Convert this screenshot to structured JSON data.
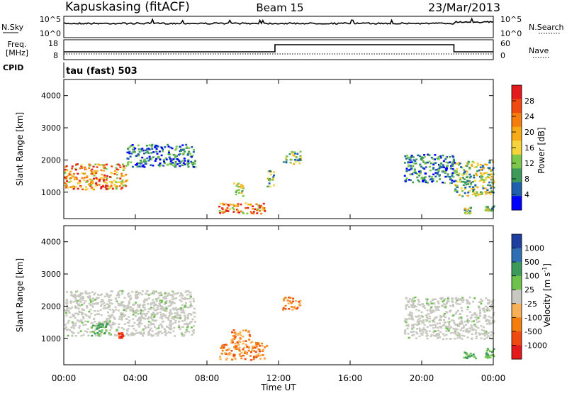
{
  "header": {
    "station": "Kapuskasing (fitACF)",
    "beam": "Beam 15",
    "date": "23/Mar/2013"
  },
  "noise_panel": {
    "left_label": "N.Sky",
    "right_label": "N.Search",
    "left_ticks": [
      "10^5",
      "10^0"
    ],
    "right_ticks": [
      "10^5",
      "10^0"
    ]
  },
  "freq_panel": {
    "left_label_line1": "Freq.",
    "left_label_line2": "[MHz]",
    "right_label": "Nave",
    "left_ticks": [
      "18",
      "8"
    ],
    "right_ticks": [
      "60",
      "0"
    ]
  },
  "cpid": {
    "label": "CPID",
    "mode": "tau (fast) 503"
  },
  "chart_data": [
    {
      "type": "heatmap",
      "name": "power",
      "xlabel": "Time UT",
      "ylabel": "Slant Range [km]",
      "x_ticks": [
        "00:00",
        "04:00",
        "08:00",
        "12:00",
        "16:00",
        "20:00",
        "00:00"
      ],
      "xlim_hours": [
        0,
        24
      ],
      "ylim": [
        180,
        4500
      ],
      "y_ticks": [
        1000,
        2000,
        3000,
        4000
      ],
      "colorbar": {
        "label": "Power [dB]",
        "ticks": [
          "28",
          "24",
          "20",
          "16",
          "12",
          "8",
          "4"
        ],
        "colors": [
          "#e41a1c",
          "#f04a10",
          "#f47d0e",
          "#f7ab17",
          "#f5d33a",
          "#7dc74a",
          "#3c9b5a",
          "#1e5fae",
          "#0000ff"
        ]
      },
      "regions": [
        {
          "t": [
            0.0,
            3.5
          ],
          "r": [
            1100,
            1900
          ],
          "level": "high"
        },
        {
          "t": [
            3.5,
            7.3
          ],
          "r": [
            1800,
            2500
          ],
          "level": "low"
        },
        {
          "t": [
            8.6,
            11.2
          ],
          "r": [
            350,
            700
          ],
          "level": "high"
        },
        {
          "t": [
            9.4,
            10.0
          ],
          "r": [
            900,
            1300
          ],
          "level": "med"
        },
        {
          "t": [
            11.3,
            11.8
          ],
          "r": [
            1200,
            1700
          ],
          "level": "med"
        },
        {
          "t": [
            12.2,
            13.2
          ],
          "r": [
            1900,
            2300
          ],
          "level": "med"
        },
        {
          "t": [
            19.0,
            21.8
          ],
          "r": [
            1300,
            2200
          ],
          "level": "low"
        },
        {
          "t": [
            21.8,
            24.0
          ],
          "r": [
            900,
            2000
          ],
          "level": "med"
        },
        {
          "t": [
            22.3,
            22.7
          ],
          "r": [
            350,
            550
          ],
          "level": "med"
        },
        {
          "t": [
            23.5,
            24.0
          ],
          "r": [
            400,
            600
          ],
          "level": "med"
        }
      ]
    },
    {
      "type": "heatmap",
      "name": "velocity",
      "xlabel": "Time UT",
      "ylabel": "Slant Range [km]",
      "x_ticks": [
        "00:00",
        "04:00",
        "08:00",
        "12:00",
        "16:00",
        "20:00",
        "00:00"
      ],
      "xlim_hours": [
        0,
        24
      ],
      "ylim": [
        180,
        4500
      ],
      "y_ticks": [
        1000,
        2000,
        3000,
        4000
      ],
      "colorbar": {
        "label": "Velocity [m s^-1]",
        "ticks": [
          "1000",
          "500",
          "100",
          "25",
          "-25",
          "-100",
          "-500",
          "-1000"
        ],
        "colors": [
          "#1e3fa0",
          "#2f6fb4",
          "#3c9b5a",
          "#6cc24a",
          "#c8c8c0",
          "#f7b055",
          "#f47d0e",
          "#f04a10",
          "#e41a1c"
        ]
      },
      "regions": [
        {
          "t": [
            0.0,
            7.3
          ],
          "r": [
            1100,
            2500
          ],
          "level": "grey"
        },
        {
          "t": [
            1.5,
            2.5
          ],
          "r": [
            1100,
            1500
          ],
          "level": "green"
        },
        {
          "t": [
            3.0,
            3.3
          ],
          "r": [
            1000,
            1200
          ],
          "level": "red"
        },
        {
          "t": [
            8.6,
            11.3
          ],
          "r": [
            350,
            900
          ],
          "level": "orange"
        },
        {
          "t": [
            9.3,
            10.5
          ],
          "r": [
            900,
            1300
          ],
          "level": "orange"
        },
        {
          "t": [
            12.2,
            13.2
          ],
          "r": [
            1900,
            2300
          ],
          "level": "orange"
        },
        {
          "t": [
            19.0,
            24.0
          ],
          "r": [
            1000,
            2300
          ],
          "level": "grey"
        },
        {
          "t": [
            22.3,
            23.0
          ],
          "r": [
            400,
            600
          ],
          "level": "green"
        },
        {
          "t": [
            23.5,
            24.0
          ],
          "r": [
            400,
            700
          ],
          "level": "green"
        }
      ]
    }
  ]
}
